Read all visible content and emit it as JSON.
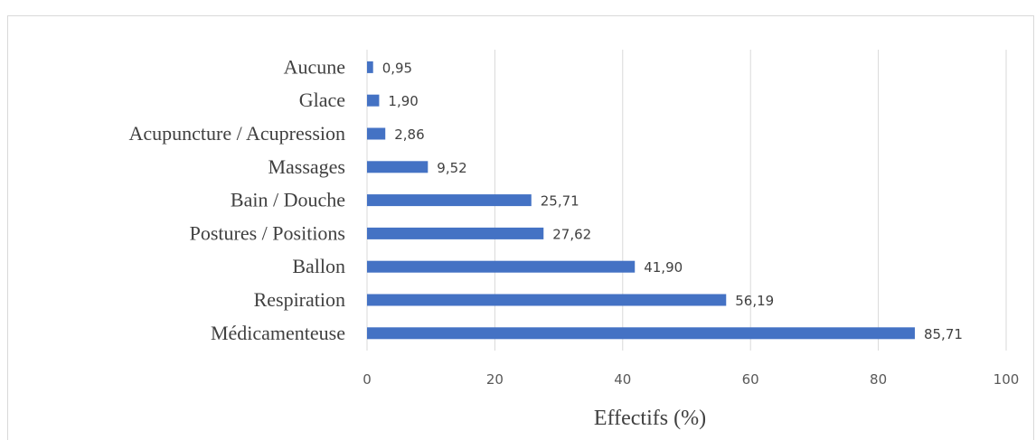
{
  "chart_data": {
    "type": "bar",
    "orientation": "horizontal",
    "categories": [
      "Aucune",
      "Glace",
      "Acupuncture / Acupression",
      "Massages",
      "Bain / Douche",
      "Postures / Positions",
      "Ballon",
      "Respiration",
      "Médicamenteuse"
    ],
    "values": [
      0.95,
      1.9,
      2.86,
      9.52,
      25.71,
      27.62,
      41.9,
      56.19,
      85.71
    ],
    "value_labels": [
      "0,95",
      "1,90",
      "2,86",
      "9,52",
      "25,71",
      "27,62",
      "41,90",
      "56,19",
      "85,71"
    ],
    "xlabel": "Effectifs (%)",
    "ylabel": "",
    "xlim": [
      0,
      100
    ],
    "xticks": [
      0,
      20,
      40,
      60,
      80,
      100
    ],
    "xtick_labels": [
      "0",
      "20",
      "40",
      "60",
      "80",
      "100"
    ],
    "grid": "vertical",
    "bar_color": "#4472c4",
    "grid_color": "#d9d9d9"
  }
}
